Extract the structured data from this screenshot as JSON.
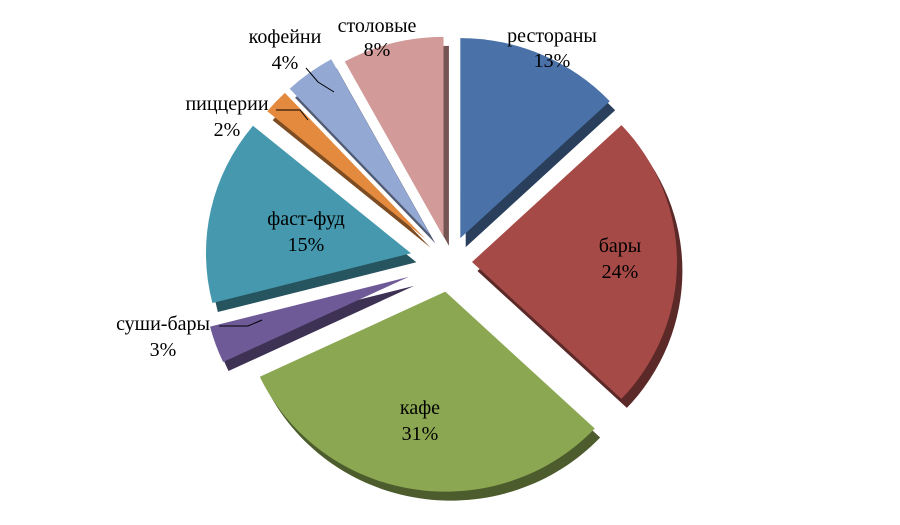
{
  "chart_data": {
    "type": "pie",
    "style": "exploded-3d",
    "categories": [
      "рестораны",
      "бары",
      "кафе",
      "суши-бары",
      "фаст-фуд",
      "пиццерии",
      "кофейни",
      "столовые"
    ],
    "values": [
      13,
      24,
      31,
      3,
      15,
      2,
      4,
      8
    ],
    "value_labels": [
      "13%",
      "24%",
      "31%",
      "3%",
      "15%",
      "2%",
      "4%",
      "8%"
    ],
    "colors": [
      "#4A72A8",
      "#A64A47",
      "#8BA752",
      "#6F5A98",
      "#4598AD",
      "#E38A3E",
      "#93A8D3",
      "#D29A98"
    ],
    "legend": "none",
    "title": ""
  }
}
